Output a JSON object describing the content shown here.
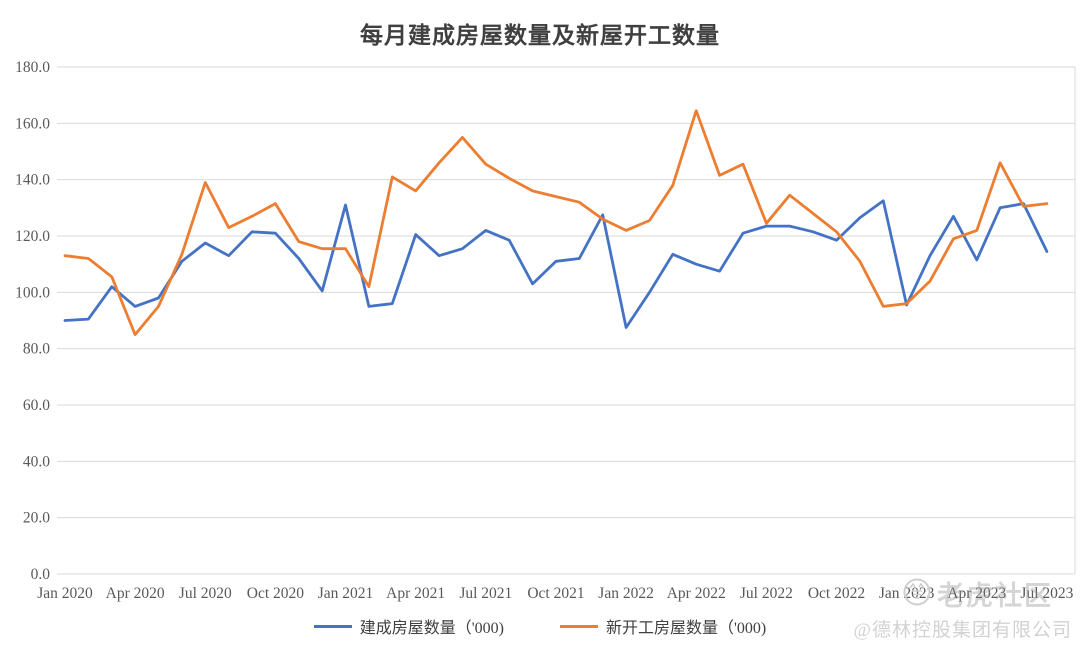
{
  "title": "每月建成房屋数量及新屋开工数量",
  "watermark": {
    "community": "老虎社区",
    "company": "@德林控股集团有限公司"
  },
  "colors": {
    "completions_line": "#4472C4",
    "starts_line": "#ED7D31",
    "gridline": "#D9D9D9",
    "axis_text": "#595959",
    "title_text": "#3F3F3F"
  },
  "chart_data": {
    "type": "line",
    "title": "每月建成房屋数量及新屋开工数量",
    "xlabel": "",
    "ylabel": "",
    "ylim": [
      0,
      180
    ],
    "grid": true,
    "legend_position": "bottom",
    "y_tick_labels": [
      "0.0",
      "20.0",
      "40.0",
      "60.0",
      "80.0",
      "100.0",
      "120.0",
      "140.0",
      "160.0",
      "180.0"
    ],
    "x_tick_labels": [
      "Jan 2020",
      "Apr 2020",
      "Jul 2020",
      "Oct 2020",
      "Jan 2021",
      "Apr 2021",
      "Jul 2021",
      "Oct 2021",
      "Jan 2022",
      "Apr 2022",
      "Jul 2022",
      "Oct 2022",
      "Jan 2023",
      "Apr 2023",
      "Jul 2023"
    ],
    "x": [
      "Jan 2020",
      "Feb 2020",
      "Mar 2020",
      "Apr 2020",
      "May 2020",
      "Jun 2020",
      "Jul 2020",
      "Aug 2020",
      "Sep 2020",
      "Oct 2020",
      "Nov 2020",
      "Dec 2020",
      "Jan 2021",
      "Feb 2021",
      "Mar 2021",
      "Apr 2021",
      "May 2021",
      "Jun 2021",
      "Jul 2021",
      "Aug 2021",
      "Sep 2021",
      "Oct 2021",
      "Nov 2021",
      "Dec 2021",
      "Jan 2022",
      "Feb 2022",
      "Mar 2022",
      "Apr 2022",
      "May 2022",
      "Jun 2022",
      "Jul 2022",
      "Aug 2022",
      "Sep 2022",
      "Oct 2022",
      "Nov 2022",
      "Dec 2022",
      "Jan 2023",
      "Feb 2023",
      "Mar 2023",
      "Apr 2023",
      "May 2023",
      "Jun 2023",
      "Jul 2023"
    ],
    "series": [
      {
        "name": "建成房屋数量（'000)",
        "color": "#4472C4",
        "values": [
          90,
          90.5,
          102,
          95,
          98,
          111,
          117.5,
          113,
          121.5,
          121,
          112,
          100.5,
          131,
          95,
          96,
          120.5,
          113,
          115.5,
          122,
          118.5,
          103,
          111,
          112,
          127.5,
          87.5,
          100,
          113.5,
          110,
          107.5,
          121,
          123.5,
          123.5,
          121.5,
          118.5,
          126.5,
          132.5,
          95.5,
          113,
          127,
          111.5,
          130,
          131.5,
          114.5
        ]
      },
      {
        "name": "新开工房屋数量（'000)",
        "color": "#ED7D31",
        "values": [
          113,
          112,
          105.5,
          85,
          95,
          113.5,
          139,
          123,
          127,
          131.5,
          118,
          115.5,
          115.5,
          102,
          141,
          136,
          146,
          155,
          145.5,
          140.5,
          136,
          134,
          132,
          126,
          122,
          125.5,
          138,
          164.5,
          141.5,
          145.5,
          124.5,
          134.5,
          128,
          121.5,
          111,
          95,
          96,
          104,
          119,
          122,
          146,
          130.5,
          131.5
        ]
      }
    ]
  }
}
